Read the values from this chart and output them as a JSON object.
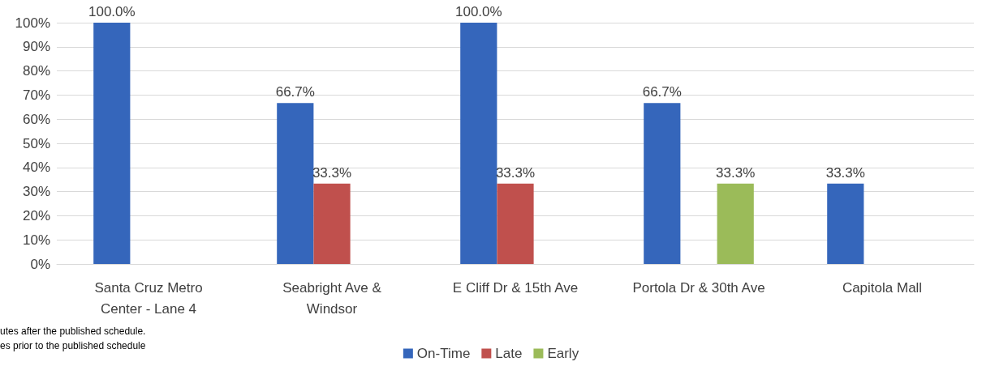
{
  "chart_data": {
    "type": "bar",
    "categories": [
      "Santa Cruz Metro\nCenter - Lane 4",
      "Seabright Ave &\nWindsor",
      "E Cliff Dr & 15th Ave",
      "Portola Dr & 30th Ave",
      "Capitola Mall"
    ],
    "series": [
      {
        "name": "On-Time",
        "color": "#3566bb",
        "values": [
          100,
          66.7,
          100,
          66.7,
          33.3
        ],
        "value_labels": [
          "100.0%",
          "66.7%",
          "100.0%",
          "66.7%",
          "33.3%"
        ]
      },
      {
        "name": "Late",
        "color": "#c0504d",
        "values": [
          0,
          33.3,
          33.3,
          0,
          0
        ],
        "value_labels": [
          null,
          "33.3%",
          "33.3%",
          null,
          null
        ]
      },
      {
        "name": "Early",
        "color": "#9bbb59",
        "values": [
          0,
          0,
          0,
          33.3,
          0
        ],
        "value_labels": [
          null,
          null,
          null,
          "33.3%",
          null
        ]
      }
    ],
    "ylim": [
      0,
      100
    ],
    "yticks": [
      {
        "value": 0,
        "label": "0%"
      },
      {
        "value": 10,
        "label": "10%"
      },
      {
        "value": 20,
        "label": "20%"
      },
      {
        "value": 30,
        "label": "30%"
      },
      {
        "value": 40,
        "label": "40%"
      },
      {
        "value": 50,
        "label": "50%"
      },
      {
        "value": 60,
        "label": "60%"
      },
      {
        "value": 70,
        "label": "70%"
      },
      {
        "value": 80,
        "label": "80%"
      },
      {
        "value": 90,
        "label": "90%"
      },
      {
        "value": 100,
        "label": "100%"
      }
    ],
    "grid": "y",
    "legend": "bottom",
    "annotations": [
      "utes after the published schedule.",
      "es prior to the published schedule"
    ]
  }
}
